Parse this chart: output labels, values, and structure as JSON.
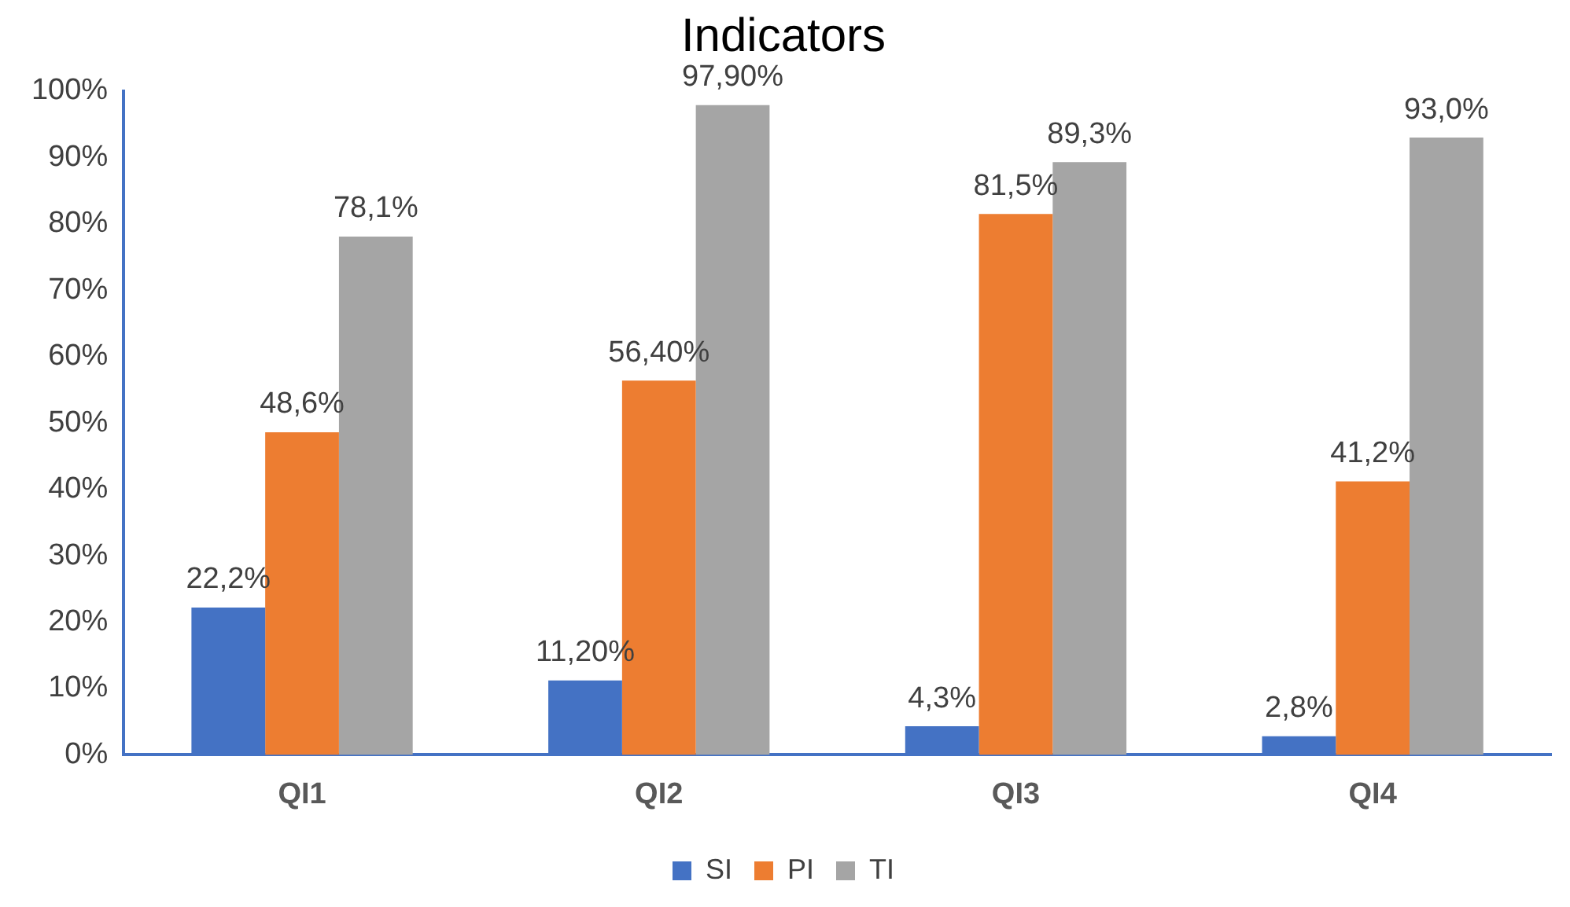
{
  "chart_data": {
    "type": "bar",
    "title": "Indicators",
    "categories": [
      "QI1",
      "QI2",
      "QI3",
      "QI4"
    ],
    "series": [
      {
        "name": "SI",
        "color": "#4472c4",
        "values": [
          22.2,
          11.2,
          4.3,
          2.8
        ],
        "value_labels": [
          "22,2%",
          "11,20%",
          "4,3%",
          "2,8%"
        ]
      },
      {
        "name": "PI",
        "color": "#ed7d31",
        "values": [
          48.6,
          56.4,
          81.5,
          41.2
        ],
        "value_labels": [
          "48,6%",
          "56,40%",
          "81,5%",
          "41,2%"
        ]
      },
      {
        "name": "TI",
        "color": "#a5a5a5",
        "values": [
          78.1,
          97.9,
          89.3,
          93.0
        ],
        "value_labels": [
          "78,1%",
          "97,90%",
          "89,3%",
          "93,0%"
        ]
      }
    ],
    "ylim": [
      0,
      100
    ],
    "yticks": [
      {
        "value": 0,
        "label": "0%"
      },
      {
        "value": 10,
        "label": "10%"
      },
      {
        "value": 20,
        "label": "20%"
      },
      {
        "value": 30,
        "label": "30%"
      },
      {
        "value": 40,
        "label": "40%"
      },
      {
        "value": 50,
        "label": "50%"
      },
      {
        "value": 60,
        "label": "60%"
      },
      {
        "value": 70,
        "label": "70%"
      },
      {
        "value": 80,
        "label": "80%"
      },
      {
        "value": 90,
        "label": "90%"
      },
      {
        "value": 100,
        "label": "100%"
      }
    ],
    "grid": false,
    "legend": "bottom"
  }
}
